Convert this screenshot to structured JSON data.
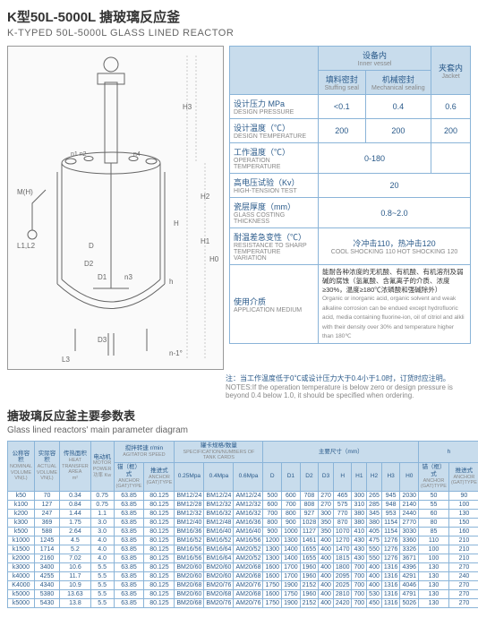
{
  "title_cn": "K型50L-5000L 搪玻璃反应釜",
  "title_en": "K-TYPED 50L-5000L GLASS LINED REACTOR",
  "spec_headers": {
    "inner_vessel_cn": "设备内",
    "inner_vessel_en": "Inner vessel",
    "jacket_cn": "夹套内",
    "jacket_en": "Jacket",
    "stuffing_cn": "填料密封",
    "stuffing_en": "Stuffing seal",
    "mech_cn": "机械密封",
    "mech_en": "Mechanical sealing"
  },
  "specs": [
    {
      "cn": "设计压力 MPa",
      "en": "DESIGN PRESSURE",
      "v1": "<0.1",
      "v2": "0.4",
      "v3": "0.6"
    },
    {
      "cn": "设计温度（℃）",
      "en": "DESIGN TEMPERATURE",
      "v1": "200",
      "v2": "200",
      "v3": "200"
    },
    {
      "cn": "工作温度（℃）",
      "en": "OPERATION TEMPERATURE",
      "span": "0-180",
      "v3": ""
    },
    {
      "cn": "高电压试验（Kv）",
      "en": "HIGH-TENSION TEST",
      "span3": "20"
    },
    {
      "cn": "瓷层厚度（mm）",
      "en": "GLASS COSTING THICKNESS",
      "span3": "0.8~2.0"
    },
    {
      "cn": "耐温差急变性（℃）",
      "en": "RESISTANCE TO SHARP TEMPERATURE VARIATION",
      "span3_cn": "冷冲击110，热冲击120",
      "span3_en": "COOL SHOCKING 110 HOT SHOCKING 120"
    }
  ],
  "medium": {
    "label_cn": "使用介质",
    "label_en": "APPLICATION MEDIUM",
    "text_cn": "能耐各种浓度的无机酸、有机酸、有机溶剂及弱碱的腐蚀（氢氟酸、含氟离子的介质、浓度≥30%，温度≥180℃浓磷酸和强碱除外）",
    "text_en": "Organic or inorganic acid, organic solvent and weak alkaline corrosion can be endued except hydrofluoric acid, media containing fluorine-ion, oil of citriol and alkli with their density over 30% and temperature higher than 180℃"
  },
  "note_cn": "注：当工作温度低于0℃或设计压力大于0.4小于1.0时，订货时应注明。",
  "note_en": "NOTES:If the operation temperature is below zero or design pressure is beyond 0.4 below 1.0, it should be specified when ordering.",
  "section_cn": "搪玻璃反应釜主要参数表",
  "section_en": "Glass lined reactors' main parameter diagram",
  "param_headers": [
    {
      "cn": "公称容积",
      "en": "NOMINAL VOLUME",
      "u": "VN(L)"
    },
    {
      "cn": "实际容积",
      "en": "ACTUAL VOLUME",
      "u": "VN(L)"
    },
    {
      "cn": "传热面积",
      "en": "HEAT TRANSFER AREA",
      "u": "m²"
    },
    {
      "cn": "电动机",
      "en": "MOTOR POWER",
      "u": "功率 Kw"
    },
    {
      "cn": "搅拌转速",
      "en": "AGITATOR SPEED",
      "u": "r/min",
      "sub": [
        "锚（框）式",
        "推进式"
      ]
    },
    {
      "cn": "罐卡规格/数量",
      "en": "SPECIFICATION/NUMBERS OF TANK CARDS",
      "sub": [
        "0.25Mpa",
        "0.4Mpa",
        "0.6Mpa"
      ]
    },
    {
      "cn": "主要尺寸（mm）",
      "en": "",
      "sub": [
        "D",
        "D1",
        "D2",
        "D3",
        "H",
        "H1",
        "H2",
        "H3",
        "H0"
      ]
    },
    {
      "cn": "h",
      "en": "",
      "sub": [
        "锚（框）式",
        "推进式"
      ]
    },
    {
      "cn": "参考重量",
      "en": "0.4Mpa Kg"
    }
  ],
  "rows": [
    [
      "k50",
      "70",
      "0.34",
      "0.75",
      "63.85",
      "80.125",
      "BM12/24",
      "BM12/24",
      "AM12/24",
      "500",
      "600",
      "708",
      "270",
      "465",
      "300",
      "265",
      "945",
      "2030",
      "50",
      "90",
      "445"
    ],
    [
      "k100",
      "127",
      "0.84",
      "0.75",
      "63.85",
      "80.125",
      "BM12/28",
      "BM12/32",
      "AM12/32",
      "600",
      "700",
      "808",
      "270",
      "575",
      "310",
      "285",
      "948",
      "2140",
      "55",
      "100",
      "562"
    ],
    [
      "k200",
      "247",
      "1.44",
      "1.1",
      "63.85",
      "80.125",
      "BM12/32",
      "BM16/32",
      "AM16/32",
      "700",
      "800",
      "927",
      "300",
      "770",
      "380",
      "345",
      "953",
      "2440",
      "60",
      "130",
      "649"
    ],
    [
      "k300",
      "369",
      "1.75",
      "3.0",
      "63.85",
      "80.125",
      "BM12/40",
      "BM12/48",
      "AM16/36",
      "800",
      "900",
      "1028",
      "350",
      "870",
      "380",
      "380",
      "1154",
      "2770",
      "80",
      "150",
      "968"
    ],
    [
      "k500",
      "588",
      "2.64",
      "3.0",
      "63.85",
      "80.125",
      "BM16/36",
      "BM16/40",
      "AM16/40",
      "900",
      "1000",
      "1127",
      "350",
      "1070",
      "410",
      "405",
      "1154",
      "3030",
      "85",
      "160",
      "1175"
    ],
    [
      "k1000",
      "1245",
      "4.5",
      "4.0",
      "63.85",
      "80.125",
      "BM16/52",
      "BM16/52",
      "AM16/56",
      "1200",
      "1300",
      "1461",
      "400",
      "1270",
      "430",
      "475",
      "1276",
      "3360",
      "110",
      "210",
      "1803"
    ],
    [
      "k1500",
      "1714",
      "5.2",
      "4.0",
      "63.85",
      "80.125",
      "BM16/56",
      "BM16/64",
      "AM20/52",
      "1300",
      "1400",
      "1655",
      "400",
      "1470",
      "430",
      "550",
      "1276",
      "3326",
      "100",
      "210",
      "2190"
    ],
    [
      "k2000",
      "2160",
      "7.02",
      "4.0",
      "63.85",
      "80.125",
      "BM16/56",
      "BM16/64",
      "AM20/52",
      "1300",
      "1400",
      "1655",
      "400",
      "1815",
      "430",
      "550",
      "1276",
      "3671",
      "100",
      "210",
      "2450"
    ],
    [
      "k3000",
      "3400",
      "10.6",
      "5.5",
      "63.85",
      "80.125",
      "BM20/60",
      "BM20/60",
      "AM20/68",
      "1600",
      "1700",
      "1960",
      "400",
      "1800",
      "700",
      "400",
      "1316",
      "4396",
      "130",
      "270",
      "3611"
    ],
    [
      "k4000",
      "4255",
      "11.7",
      "5.5",
      "63.85",
      "80.125",
      "BM20/60",
      "BM20/60",
      "AM20/68",
      "1600",
      "1700",
      "1960",
      "400",
      "2095",
      "700",
      "400",
      "1316",
      "4291",
      "130",
      "240",
      "4018"
    ],
    [
      "K4000",
      "4340",
      "10.9",
      "5.5",
      "63.85",
      "80.125",
      "BM20/68",
      "BM20/76",
      "AM20/76",
      "1750",
      "1900",
      "2152",
      "400",
      "2025",
      "700",
      "400",
      "1316",
      "4046",
      "130",
      "270",
      "4416"
    ],
    [
      "k5000",
      "5380",
      "13.63",
      "5.5",
      "63.85",
      "80.125",
      "BM20/60",
      "BM20/68",
      "AM20/68",
      "1600",
      "1750",
      "1960",
      "400",
      "2810",
      "700",
      "530",
      "1316",
      "4791",
      "130",
      "270",
      "4568"
    ],
    [
      "k5000",
      "5430",
      "13.8",
      "5.5",
      "63.85",
      "80.125",
      "BM20/68",
      "BM20/76",
      "AM20/76",
      "1750",
      "1900",
      "2152",
      "400",
      "2420",
      "700",
      "450",
      "1316",
      "5026",
      "130",
      "270",
      "5025"
    ]
  ]
}
